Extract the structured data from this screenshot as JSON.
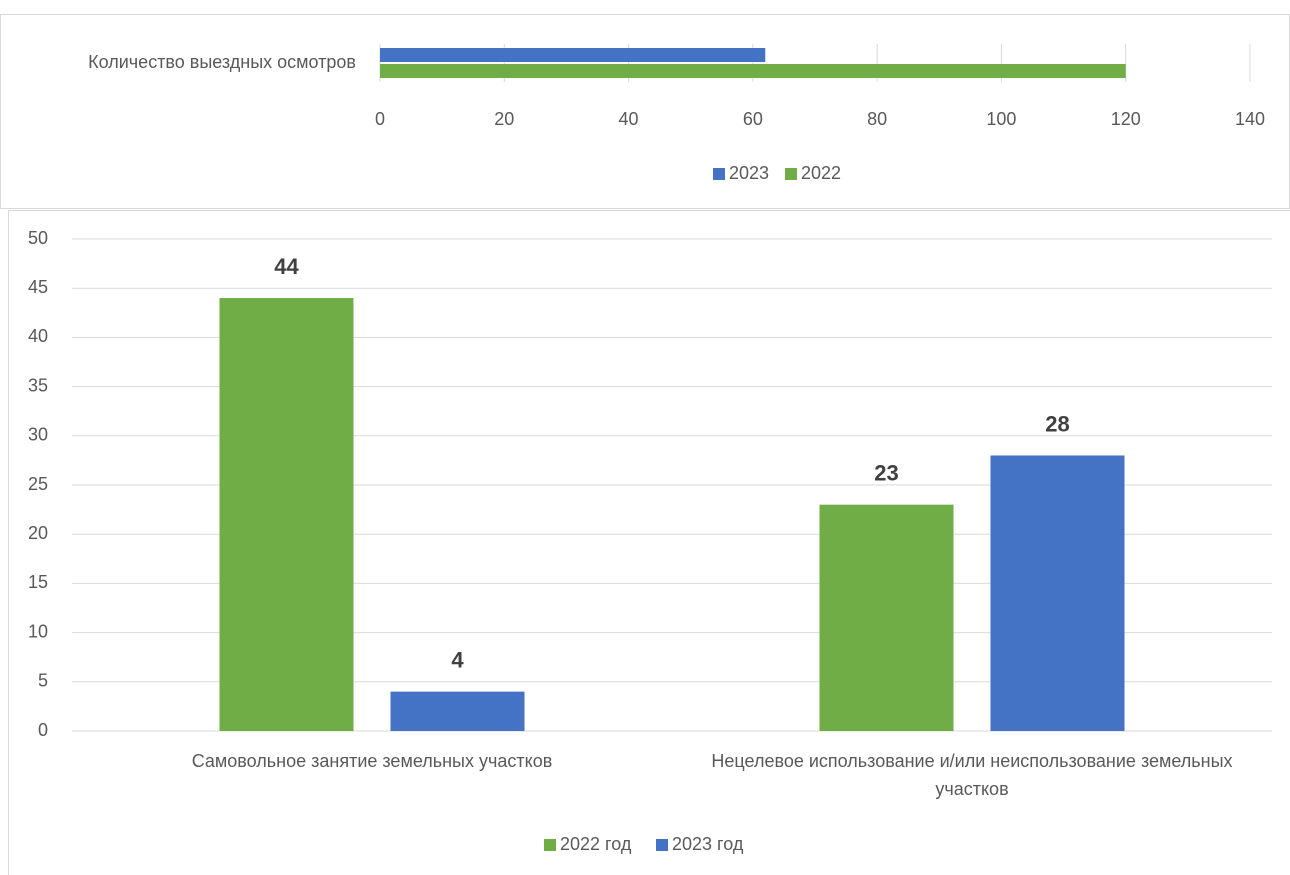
{
  "chart_data": [
    {
      "type": "bar",
      "orientation": "horizontal",
      "categories": [
        "Количество выездных осмотров"
      ],
      "series": [
        {
          "name": "2023",
          "color": "#4472c4",
          "values": [
            62
          ]
        },
        {
          "name": "2022",
          "color": "#70ad47",
          "values": [
            120
          ]
        }
      ],
      "xlim": [
        0,
        140
      ],
      "xticks": [
        0,
        20,
        40,
        60,
        80,
        100,
        120,
        140
      ],
      "grid": true,
      "legend": "bottom"
    },
    {
      "type": "bar",
      "orientation": "vertical",
      "categories": [
        "Самовольное занятие земельных участков",
        "Нецелевое использование и/или неиспользование земельных участков"
      ],
      "series": [
        {
          "name": "2022 год",
          "color": "#70ad47",
          "values": [
            44,
            23
          ]
        },
        {
          "name": "2023 год",
          "color": "#4472c4",
          "values": [
            4,
            28
          ]
        }
      ],
      "ylim": [
        0,
        50
      ],
      "yticks": [
        0,
        5,
        10,
        15,
        20,
        25,
        30,
        35,
        40,
        45,
        50
      ],
      "grid": true,
      "legend": "bottom",
      "data_labels": true
    }
  ]
}
